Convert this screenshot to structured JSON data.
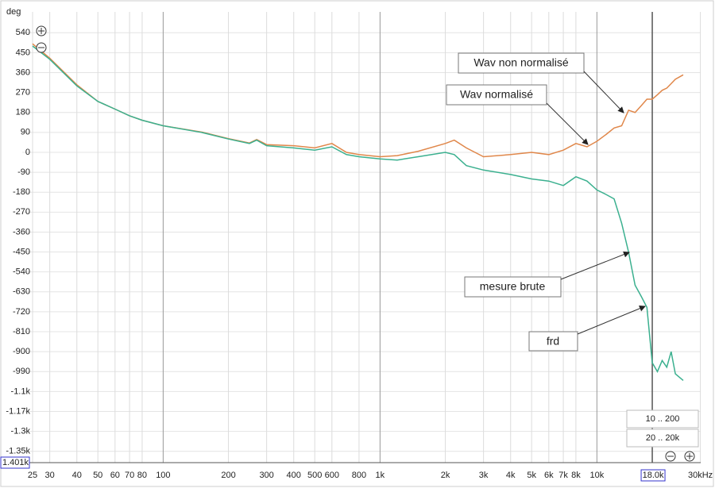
{
  "chart_data": {
    "type": "line",
    "y_unit": "deg",
    "x": [
      25,
      30,
      40,
      50,
      60,
      70,
      80,
      100,
      150,
      200,
      250,
      270,
      300,
      400,
      500,
      600,
      700,
      800,
      1000,
      1200,
      1500,
      2000,
      2200,
      2500,
      3000,
      4000,
      5000,
      6000,
      7000,
      8000,
      9000,
      10000,
      11000,
      12000,
      13000,
      14000,
      15000,
      16000,
      17000,
      18000,
      19000,
      20000,
      21000,
      22000,
      23000,
      25000
    ],
    "series": [
      {
        "color": "#e0874a",
        "values": [
          490,
          425,
          305,
          230,
          195,
          165,
          145,
          120,
          92,
          62,
          42,
          58,
          35,
          30,
          20,
          40,
          0,
          -10,
          -20,
          -15,
          5,
          40,
          55,
          20,
          -20,
          -10,
          0,
          -10,
          10,
          40,
          25,
          50,
          80,
          110,
          120,
          190,
          180,
          210,
          240,
          240,
          260,
          280,
          290,
          310,
          330,
          350
        ]
      },
      {
        "color": "#3bb08f",
        "values": [
          480,
          420,
          300,
          230,
          195,
          165,
          145,
          120,
          90,
          60,
          40,
          55,
          30,
          20,
          10,
          25,
          -10,
          -20,
          -30,
          -35,
          -20,
          0,
          -10,
          -60,
          -80,
          -100,
          -120,
          -130,
          -150,
          -110,
          -130,
          -170,
          -190,
          -210,
          -320,
          -450,
          -600,
          -650,
          -700,
          -950,
          -990,
          -940,
          -970,
          -900,
          -1000,
          -1030
        ]
      }
    ],
    "xscale": "log",
    "xlim": [
      22.4,
      30100
    ],
    "ylim": [
      -1401,
      634
    ],
    "grid": true,
    "xticks": [
      25,
      30,
      40,
      50,
      60,
      70,
      80,
      100,
      200,
      300,
      400,
      500,
      600,
      800,
      {
        "value": 1000,
        "label": "1k"
      },
      {
        "value": 2000,
        "label": "2k"
      },
      {
        "value": 3000,
        "label": "3k"
      },
      {
        "value": 4000,
        "label": "4k"
      },
      {
        "value": 5000,
        "label": "5k"
      },
      {
        "value": 6000,
        "label": "6k"
      },
      {
        "value": 7000,
        "label": "7k"
      },
      {
        "value": 8000,
        "label": "8k"
      },
      {
        "value": 10000,
        "label": "10k"
      },
      {
        "value": 30000,
        "label": "30kHz"
      }
    ],
    "yticks": [
      540,
      450,
      360,
      270,
      180,
      90,
      0,
      -90,
      -180,
      -270,
      -360,
      -450,
      -540,
      -630,
      -720,
      -810,
      -900,
      -990,
      {
        "value": -1080,
        "label": "-1.1k"
      },
      {
        "value": -1170,
        "label": "-1.17k"
      },
      {
        "value": -1260,
        "label": "-1.3k"
      },
      {
        "value": -1350,
        "label": "-1.35k"
      }
    ],
    "cursor": {
      "x": 18000,
      "x_label": "18.0k",
      "y_label": "1.401k"
    },
    "annotations": [
      "Wav non normalisé",
      "Wav normalisé",
      "mesure brute",
      "frd"
    ],
    "range_buttons": [
      "10 .. 200",
      "20 .. 20k"
    ]
  }
}
